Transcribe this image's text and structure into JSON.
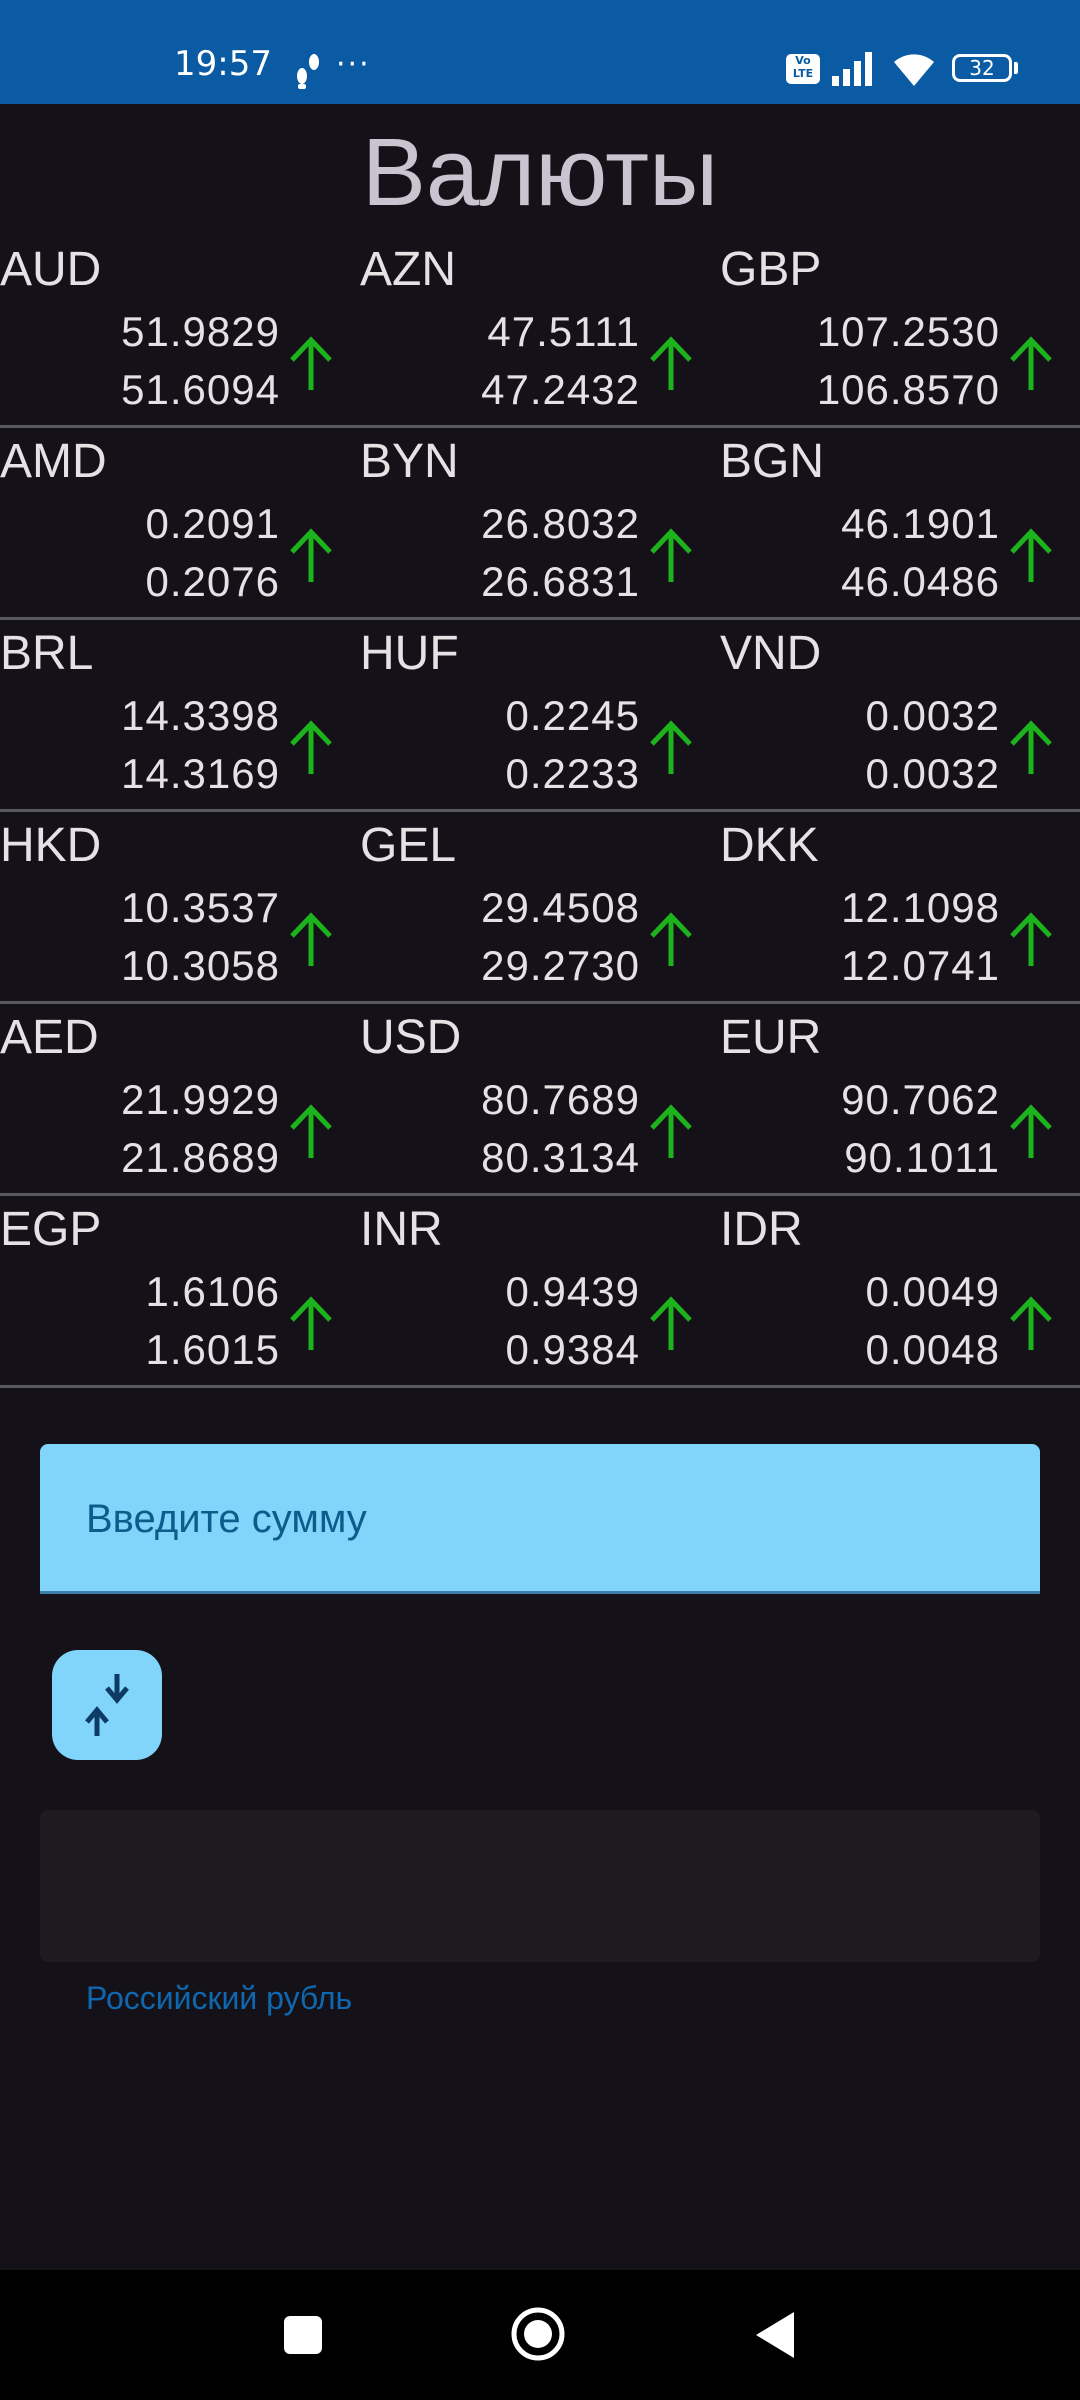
{
  "status_bar": {
    "time": "19:57",
    "more": "···",
    "volte": "Vo LTE",
    "battery": "32"
  },
  "title": "Валюты",
  "rates": [
    [
      {
        "code": "AUD",
        "buy": "51.9829",
        "sell": "51.6094"
      },
      {
        "code": "AZN",
        "buy": "47.5111",
        "sell": "47.2432"
      },
      {
        "code": "GBP",
        "buy": "107.2530",
        "sell": "106.8570"
      }
    ],
    [
      {
        "code": "AMD",
        "buy": "0.2091",
        "sell": "0.2076"
      },
      {
        "code": "BYN",
        "buy": "26.8032",
        "sell": "26.6831"
      },
      {
        "code": "BGN",
        "buy": "46.1901",
        "sell": "46.0486"
      }
    ],
    [
      {
        "code": "BRL",
        "buy": "14.3398",
        "sell": "14.3169"
      },
      {
        "code": "HUF",
        "buy": "0.2245",
        "sell": "0.2233"
      },
      {
        "code": "VND",
        "buy": "0.0032",
        "sell": "0.0032"
      }
    ],
    [
      {
        "code": "HKD",
        "buy": "10.3537",
        "sell": "10.3058"
      },
      {
        "code": "GEL",
        "buy": "29.4508",
        "sell": "29.2730"
      },
      {
        "code": "DKK",
        "buy": "12.1098",
        "sell": "12.0741"
      }
    ],
    [
      {
        "code": "AED",
        "buy": "21.9929",
        "sell": "21.8689"
      },
      {
        "code": "USD",
        "buy": "80.7689",
        "sell": "80.3134"
      },
      {
        "code": "EUR",
        "buy": "90.7062",
        "sell": "90.1011"
      }
    ],
    [
      {
        "code": "EGP",
        "buy": "1.6106",
        "sell": "1.6015"
      },
      {
        "code": "INR",
        "buy": "0.9439",
        "sell": "0.9384"
      },
      {
        "code": "IDR",
        "buy": "0.0049",
        "sell": "0.0048"
      }
    ]
  ],
  "trend_icon": "arrow-up-icon",
  "trend_color": "#1db31d",
  "amount_input": {
    "placeholder": "Введите сумму",
    "value": ""
  },
  "swap_icon": "swap-vertical-icon",
  "result": {
    "value": "",
    "currency_label": "Российский рубль"
  },
  "colors": {
    "status_bar": "#0a5ba3",
    "background": "#141218",
    "accent": "#81d4fa",
    "label": "#0f67b0"
  }
}
